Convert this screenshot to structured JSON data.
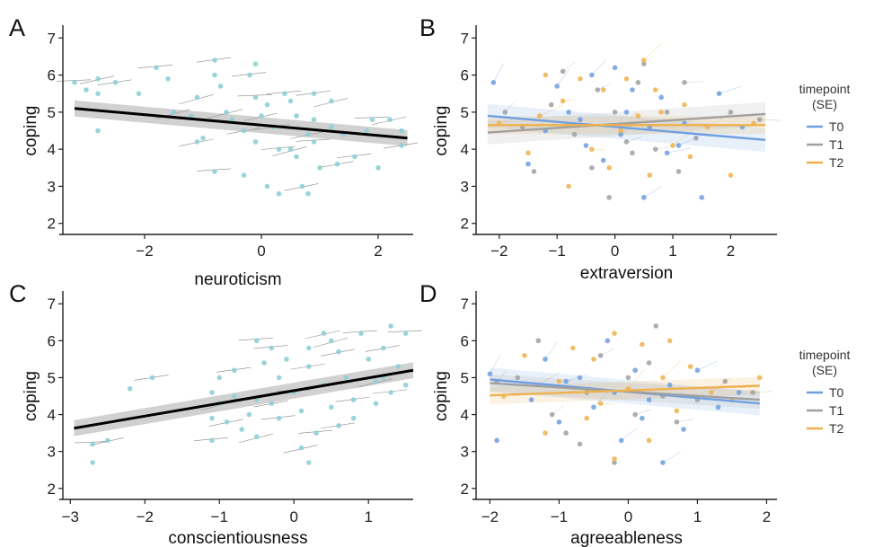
{
  "legend": {
    "title_line1": "timepoint",
    "title_line2": "(SE)",
    "items": [
      {
        "label": "T0",
        "color": "#6f9fe0"
      },
      {
        "label": "T1",
        "color": "#a0a0a0"
      },
      {
        "label": "T2",
        "color": "#eeb14e"
      }
    ]
  },
  "chart_data": [
    {
      "type": "scatter",
      "panel_label": "A",
      "xlabel": "neuroticism",
      "ylabel": "coping",
      "xlim": [
        -3.4,
        2.6
      ],
      "ylim": [
        1.8,
        7.2
      ],
      "x_ticks": [
        -2,
        0,
        2
      ],
      "y_ticks": [
        2,
        3,
        4,
        5,
        6,
        7
      ],
      "point_color": "#8fcfd6",
      "fit": {
        "color": "#000000",
        "x": [
          -3.2,
          2.5
        ],
        "y": [
          5.1,
          4.3
        ],
        "se": 0.12
      },
      "points": [
        [
          -3.2,
          5.8
        ],
        [
          -3.0,
          5.6
        ],
        [
          -2.8,
          5.9
        ],
        [
          -2.8,
          5.5
        ],
        [
          -2.5,
          5.8
        ],
        [
          -2.1,
          5.5
        ],
        [
          -1.8,
          6.2
        ],
        [
          -1.6,
          5.9
        ],
        [
          -1.5,
          5.0
        ],
        [
          -1.2,
          4.9
        ],
        [
          -1.1,
          4.2
        ],
        [
          -1.0,
          4.3
        ],
        [
          -0.8,
          6.4
        ],
        [
          -0.8,
          6.0
        ],
        [
          -0.8,
          3.4
        ],
        [
          -0.7,
          5.7
        ],
        [
          -0.6,
          5.0
        ],
        [
          -0.5,
          4.8
        ],
        [
          -0.3,
          4.5
        ],
        [
          -0.3,
          3.3
        ],
        [
          -0.2,
          6.0
        ],
        [
          -0.1,
          6.3
        ],
        [
          -0.1,
          5.4
        ],
        [
          -0.1,
          4.2
        ],
        [
          0.0,
          4.9
        ],
        [
          0.1,
          3.0
        ],
        [
          0.2,
          4.6
        ],
        [
          0.3,
          2.8
        ],
        [
          0.4,
          5.5
        ],
        [
          0.5,
          5.3
        ],
        [
          0.5,
          4.0
        ],
        [
          0.6,
          3.8
        ],
        [
          0.7,
          3.0
        ],
        [
          0.8,
          2.8
        ],
        [
          0.9,
          5.5
        ],
        [
          0.9,
          4.8
        ],
        [
          0.9,
          4.2
        ],
        [
          1.0,
          3.5
        ],
        [
          1.2,
          5.3
        ],
        [
          1.2,
          4.6
        ],
        [
          1.3,
          3.6
        ],
        [
          1.4,
          4.4
        ],
        [
          1.6,
          3.8
        ],
        [
          1.8,
          4.5
        ],
        [
          1.9,
          4.8
        ],
        [
          2.0,
          3.5
        ],
        [
          2.2,
          4.8
        ],
        [
          2.4,
          4.5
        ],
        [
          2.4,
          4.1
        ],
        [
          -2.8,
          4.5
        ],
        [
          0.3,
          4.0
        ],
        [
          0.6,
          4.9
        ],
        [
          -1.1,
          5.4
        ],
        [
          0.1,
          5.2
        ],
        [
          0.8,
          4.4
        ]
      ]
    },
    {
      "type": "scatter",
      "panel_label": "B",
      "xlabel": "extraversion",
      "ylabel": "coping",
      "xlim": [
        -2.4,
        2.8
      ],
      "ylim": [
        1.8,
        7.2
      ],
      "x_ticks": [
        -2,
        -1,
        0,
        1,
        2
      ],
      "y_ticks": [
        2,
        3,
        4,
        5,
        6,
        7
      ],
      "series": [
        {
          "name": "T0",
          "color": "#6f9fe0",
          "fit": {
            "x": [
              -2.2,
              2.6
            ],
            "y": [
              4.9,
              4.25
            ],
            "se": 0.2
          },
          "points": [
            [
              -2.1,
              5.8
            ],
            [
              -1.5,
              3.6
            ],
            [
              -1.2,
              4.5
            ],
            [
              -1.0,
              5.7
            ],
            [
              -0.8,
              5.0
            ],
            [
              -0.5,
              4.1
            ],
            [
              -0.4,
              6.0
            ],
            [
              -0.2,
              3.7
            ],
            [
              0.0,
              6.2
            ],
            [
              0.1,
              4.4
            ],
            [
              0.2,
              5.0
            ],
            [
              0.3,
              5.6
            ],
            [
              0.5,
              2.7
            ],
            [
              0.6,
              4.6
            ],
            [
              0.8,
              5.4
            ],
            [
              1.1,
              4.1
            ],
            [
              1.2,
              4.7
            ],
            [
              1.5,
              2.7
            ],
            [
              1.8,
              5.5
            ],
            [
              2.2,
              4.6
            ],
            [
              -0.6,
              4.8
            ],
            [
              0.9,
              3.9
            ]
          ]
        },
        {
          "name": "T1",
          "color": "#a0a0a0",
          "fit": {
            "x": [
              -2.2,
              2.6
            ],
            "y": [
              4.45,
              4.95
            ],
            "se": 0.2
          },
          "points": [
            [
              -1.9,
              5.0
            ],
            [
              -1.4,
              3.4
            ],
            [
              -1.1,
              5.2
            ],
            [
              -0.9,
              6.1
            ],
            [
              -0.7,
              4.4
            ],
            [
              -0.4,
              3.5
            ],
            [
              -0.3,
              5.6
            ],
            [
              -0.1,
              2.7
            ],
            [
              0.0,
              5.0
            ],
            [
              0.2,
              4.2
            ],
            [
              0.4,
              5.8
            ],
            [
              0.5,
              6.3
            ],
            [
              0.7,
              4.0
            ],
            [
              0.9,
              5.0
            ],
            [
              1.1,
              3.4
            ],
            [
              1.2,
              5.8
            ],
            [
              1.4,
              4.3
            ],
            [
              2.0,
              5.0
            ],
            [
              2.5,
              4.8
            ],
            [
              -1.6,
              4.6
            ],
            [
              0.3,
              3.9
            ]
          ]
        },
        {
          "name": "T2",
          "color": "#eeb14e",
          "fit": {
            "x": [
              -2.2,
              2.6
            ],
            "y": [
              4.65,
              4.65
            ],
            "se": 0.15
          },
          "points": [
            [
              -2.0,
              4.7
            ],
            [
              -1.5,
              3.9
            ],
            [
              -1.2,
              6.0
            ],
            [
              -0.9,
              5.3
            ],
            [
              -0.8,
              3.0
            ],
            [
              -0.6,
              5.9
            ],
            [
              -0.4,
              4.0
            ],
            [
              -0.2,
              5.6
            ],
            [
              -0.1,
              3.5
            ],
            [
              0.1,
              4.5
            ],
            [
              0.2,
              5.9
            ],
            [
              0.4,
              4.9
            ],
            [
              0.5,
              6.4
            ],
            [
              0.6,
              3.3
            ],
            [
              0.8,
              5.0
            ],
            [
              1.0,
              4.1
            ],
            [
              1.2,
              5.2
            ],
            [
              1.3,
              3.8
            ],
            [
              1.6,
              4.6
            ],
            [
              2.0,
              3.3
            ],
            [
              2.4,
              4.7
            ],
            [
              -1.3,
              4.9
            ],
            [
              0.7,
              5.6
            ]
          ]
        }
      ]
    },
    {
      "type": "scatter",
      "panel_label": "C",
      "xlabel": "conscientiousness",
      "ylabel": "coping",
      "xlim": [
        -3.1,
        1.6
      ],
      "ylim": [
        1.8,
        7.2
      ],
      "x_ticks": [
        -3,
        -2,
        -1,
        0,
        1
      ],
      "y_ticks": [
        2,
        3,
        4,
        5,
        6,
        7
      ],
      "point_color": "#8fcfd6",
      "fit": {
        "color": "#000000",
        "x": [
          -2.95,
          1.6
        ],
        "y": [
          3.63,
          5.2
        ],
        "se": 0.12
      },
      "points": [
        [
          -2.7,
          3.2
        ],
        [
          -2.7,
          2.7
        ],
        [
          -2.5,
          3.3
        ],
        [
          -2.2,
          4.7
        ],
        [
          -1.9,
          5.0
        ],
        [
          -1.1,
          4.6
        ],
        [
          -1.1,
          3.3
        ],
        [
          -1.1,
          3.9
        ],
        [
          -1.0,
          4.3
        ],
        [
          -1.0,
          5.0
        ],
        [
          -0.9,
          3.8
        ],
        [
          -0.8,
          4.5
        ],
        [
          -0.8,
          5.2
        ],
        [
          -0.6,
          4.0
        ],
        [
          -0.5,
          6.0
        ],
        [
          -0.5,
          4.4
        ],
        [
          -0.5,
          3.4
        ],
        [
          -0.4,
          5.4
        ],
        [
          -0.3,
          4.3
        ],
        [
          -0.2,
          5.0
        ],
        [
          -0.2,
          3.9
        ],
        [
          -0.1,
          5.5
        ],
        [
          0.0,
          4.6
        ],
        [
          0.1,
          4.1
        ],
        [
          0.1,
          3.1
        ],
        [
          0.2,
          5.8
        ],
        [
          0.2,
          5.3
        ],
        [
          0.2,
          2.7
        ],
        [
          0.3,
          3.5
        ],
        [
          0.4,
          4.8
        ],
        [
          0.5,
          6.0
        ],
        [
          0.5,
          4.2
        ],
        [
          0.6,
          5.7
        ],
        [
          0.7,
          5.0
        ],
        [
          0.8,
          4.4
        ],
        [
          0.8,
          3.9
        ],
        [
          0.9,
          6.2
        ],
        [
          1.0,
          5.5
        ],
        [
          1.1,
          4.9
        ],
        [
          1.1,
          4.3
        ],
        [
          1.2,
          5.8
        ],
        [
          1.3,
          6.4
        ],
        [
          1.3,
          4.6
        ],
        [
          1.4,
          5.3
        ],
        [
          1.5,
          6.2
        ],
        [
          1.5,
          4.8
        ],
        [
          0.4,
          6.2
        ],
        [
          -0.7,
          3.6
        ],
        [
          0.6,
          3.7
        ],
        [
          1.2,
          5.0
        ],
        [
          -0.3,
          5.8
        ]
      ]
    },
    {
      "type": "scatter",
      "panel_label": "D",
      "xlabel": "agreeableness",
      "ylabel": "coping",
      "xlim": [
        -2.2,
        2.15
      ],
      "ylim": [
        1.8,
        7.2
      ],
      "x_ticks": [
        -2,
        -1,
        0,
        1,
        2
      ],
      "y_ticks": [
        2,
        3,
        4,
        5,
        6,
        7
      ],
      "series": [
        {
          "name": "T0",
          "color": "#6f9fe0",
          "fit": {
            "x": [
              -2.0,
              1.9
            ],
            "y": [
              4.95,
              4.3
            ],
            "se": 0.2
          },
          "points": [
            [
              -2.0,
              5.1
            ],
            [
              -1.9,
              3.3
            ],
            [
              -1.4,
              4.4
            ],
            [
              -1.2,
              5.5
            ],
            [
              -1.0,
              3.8
            ],
            [
              -0.7,
              5.0
            ],
            [
              -0.5,
              4.2
            ],
            [
              -0.3,
              6.0
            ],
            [
              -0.2,
              4.6
            ],
            [
              -0.1,
              3.3
            ],
            [
              0.1,
              5.2
            ],
            [
              0.3,
              4.4
            ],
            [
              0.5,
              2.7
            ],
            [
              0.6,
              4.8
            ],
            [
              0.8,
              3.6
            ],
            [
              1.0,
              5.2
            ],
            [
              1.3,
              4.2
            ],
            [
              1.6,
              4.6
            ],
            [
              -0.9,
              4.9
            ],
            [
              0.2,
              3.9
            ]
          ]
        },
        {
          "name": "T1",
          "color": "#a0a0a0",
          "fit": {
            "x": [
              -2.0,
              1.9
            ],
            "y": [
              4.85,
              4.4
            ],
            "se": 0.15
          },
          "points": [
            [
              -1.9,
              4.9
            ],
            [
              -1.6,
              5.0
            ],
            [
              -1.3,
              6.0
            ],
            [
              -1.1,
              4.0
            ],
            [
              -0.9,
              3.5
            ],
            [
              -0.6,
              4.6
            ],
            [
              -0.4,
              5.6
            ],
            [
              -0.2,
              2.7
            ],
            [
              0.0,
              5.0
            ],
            [
              0.1,
              4.0
            ],
            [
              0.4,
              6.4
            ],
            [
              0.5,
              4.5
            ],
            [
              0.7,
              3.8
            ],
            [
              1.0,
              4.4
            ],
            [
              1.4,
              4.9
            ],
            [
              1.8,
              4.6
            ],
            [
              -0.7,
              3.2
            ],
            [
              0.3,
              5.4
            ]
          ]
        },
        {
          "name": "T2",
          "color": "#eeb14e",
          "fit": {
            "x": [
              -2.0,
              1.9
            ],
            "y": [
              4.52,
              4.78
            ],
            "se": 0.15
          },
          "points": [
            [
              -1.8,
              4.5
            ],
            [
              -1.5,
              5.6
            ],
            [
              -1.2,
              3.5
            ],
            [
              -1.0,
              4.9
            ],
            [
              -0.8,
              5.8
            ],
            [
              -0.6,
              3.9
            ],
            [
              -0.4,
              4.3
            ],
            [
              -0.2,
              6.2
            ],
            [
              -0.2,
              2.8
            ],
            [
              0.0,
              4.7
            ],
            [
              0.2,
              5.9
            ],
            [
              0.3,
              3.3
            ],
            [
              0.5,
              5.0
            ],
            [
              0.7,
              4.1
            ],
            [
              0.9,
              5.3
            ],
            [
              1.2,
              4.6
            ],
            [
              1.5,
              4.4
            ],
            [
              1.9,
              5.0
            ],
            [
              -1.3,
              4.8
            ],
            [
              0.6,
              6.0
            ],
            [
              -0.5,
              5.5
            ]
          ]
        }
      ]
    }
  ]
}
